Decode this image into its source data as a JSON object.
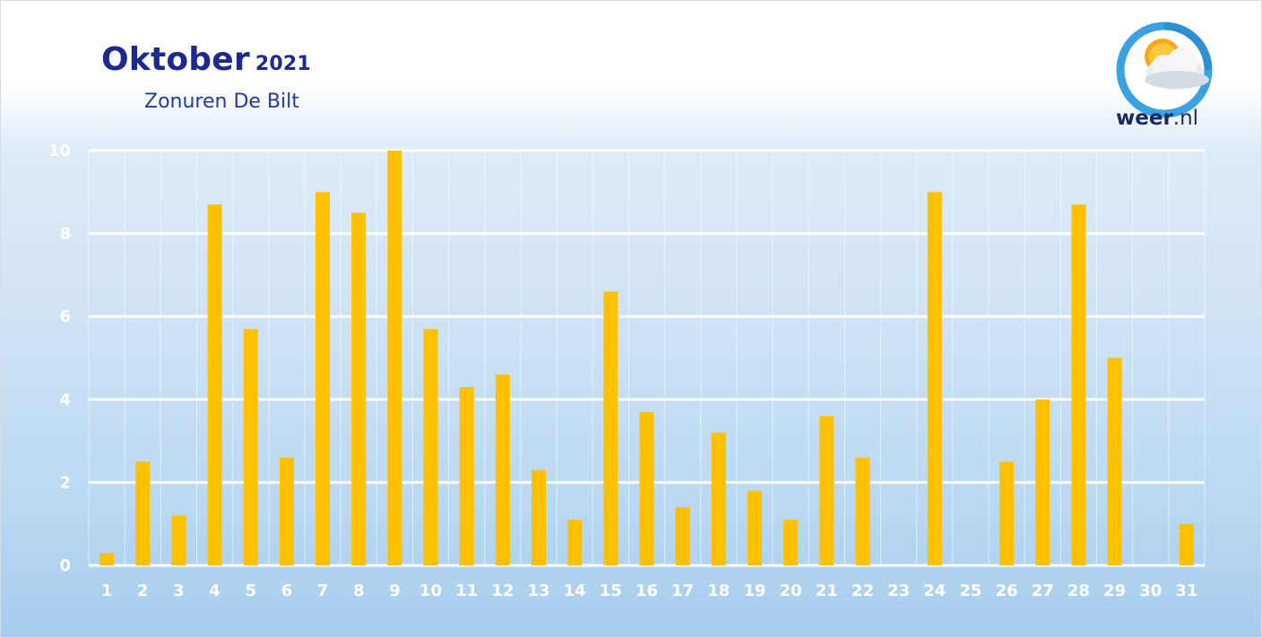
{
  "header": {
    "title": "Oktober",
    "year": "2021",
    "subtitle": "Zonuren De Bilt"
  },
  "logo": {
    "brand_bold": "weer",
    "brand_rest": ".nl",
    "icon": "sun-cloud-icon"
  },
  "colors": {
    "bar": "#ffc000",
    "title": "#1c2a8f",
    "grid": "#ffffff",
    "tick": "#ffffff"
  },
  "chart_data": {
    "type": "bar",
    "title": "Oktober 2021",
    "subtitle": "Zonuren De Bilt",
    "xlabel": "",
    "ylabel": "",
    "categories": [
      "1",
      "2",
      "3",
      "4",
      "5",
      "6",
      "7",
      "8",
      "9",
      "10",
      "11",
      "12",
      "13",
      "14",
      "15",
      "16",
      "17",
      "18",
      "19",
      "20",
      "21",
      "22",
      "23",
      "24",
      "25",
      "26",
      "27",
      "28",
      "29",
      "30",
      "31"
    ],
    "values": [
      0.3,
      2.5,
      1.2,
      8.7,
      5.7,
      2.6,
      9.0,
      8.5,
      10.0,
      5.7,
      4.3,
      4.6,
      2.3,
      1.1,
      6.6,
      3.7,
      1.4,
      3.2,
      1.8,
      1.1,
      3.6,
      2.6,
      0,
      9.0,
      0,
      2.5,
      4.0,
      8.7,
      5.0,
      0,
      1.0
    ],
    "ylim": [
      0,
      10
    ],
    "yticks": [
      "0",
      "2",
      "4",
      "6",
      "8",
      "10"
    ],
    "grid": true,
    "legend": "none"
  }
}
